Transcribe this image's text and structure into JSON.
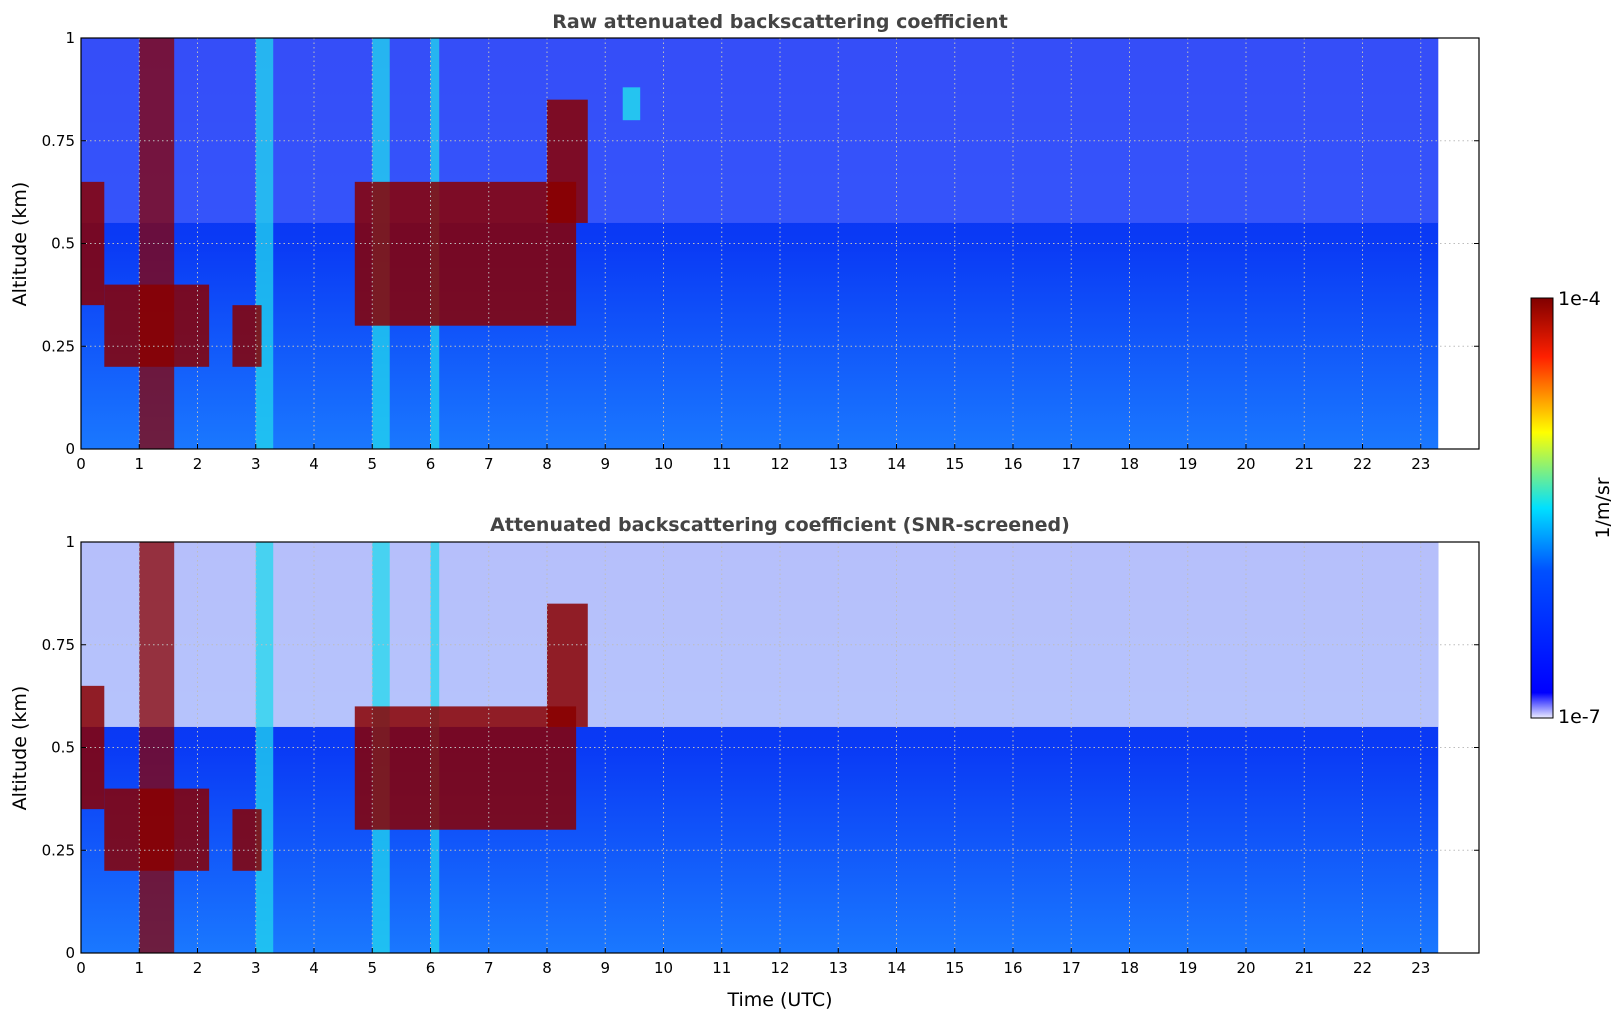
{
  "chart_data": [
    {
      "type": "heatmap",
      "title": "Raw attenuated backscattering coefficient",
      "xlabel": "",
      "ylabel": "Altitude (km)",
      "xlim": [
        0,
        24
      ],
      "ylim": [
        0,
        1
      ],
      "x_ticks": [
        "0",
        "1",
        "2",
        "3",
        "4",
        "5",
        "6",
        "7",
        "8",
        "9",
        "10",
        "11",
        "12",
        "13",
        "14",
        "15",
        "16",
        "17",
        "18",
        "19",
        "20",
        "21",
        "22",
        "23"
      ],
      "y_ticks": [
        "0",
        "0.25",
        "0.5",
        "0.75",
        "1"
      ],
      "grid": true,
      "data_extent_hours": [
        0,
        23.3
      ],
      "features": [
        {
          "t": [
            0,
            0.4
          ],
          "alt": [
            0.35,
            0.65
          ],
          "level": "high"
        },
        {
          "t": [
            0.4,
            2.2
          ],
          "alt": [
            0.2,
            0.4
          ],
          "level": "high"
        },
        {
          "t": [
            2.6,
            3.1
          ],
          "alt": [
            0.2,
            0.35
          ],
          "level": "high"
        },
        {
          "t": [
            4.7,
            8.5
          ],
          "alt": [
            0.3,
            0.65
          ],
          "level": "high"
        },
        {
          "t": [
            8.0,
            8.7
          ],
          "alt": [
            0.55,
            0.85
          ],
          "level": "high"
        },
        {
          "t": [
            9.3,
            9.6
          ],
          "alt": [
            0.8,
            0.88
          ],
          "level": "medium"
        }
      ],
      "columns": [
        {
          "t": [
            1.0,
            1.6
          ],
          "level": "high"
        },
        {
          "t": [
            3.0,
            3.3
          ],
          "level": "medium"
        },
        {
          "t": [
            5.0,
            5.3
          ],
          "level": "medium"
        },
        {
          "t": [
            6.0,
            6.15
          ],
          "level": "medium"
        }
      ]
    },
    {
      "type": "heatmap",
      "title": "Attenuated backscattering coefficient (SNR-screened)",
      "xlabel": "Time (UTC)",
      "ylabel": "Altitude (km)",
      "xlim": [
        0,
        24
      ],
      "ylim": [
        0,
        1
      ],
      "x_ticks": [
        "0",
        "1",
        "2",
        "3",
        "4",
        "5",
        "6",
        "7",
        "8",
        "9",
        "10",
        "11",
        "12",
        "13",
        "14",
        "15",
        "16",
        "17",
        "18",
        "19",
        "20",
        "21",
        "22",
        "23"
      ],
      "y_ticks": [
        "0",
        "0.25",
        "0.5",
        "0.75",
        "1"
      ],
      "grid": true,
      "data_extent_hours": [
        0,
        23.3
      ],
      "features": [
        {
          "t": [
            0,
            0.4
          ],
          "alt": [
            0.35,
            0.65
          ],
          "level": "high"
        },
        {
          "t": [
            0.4,
            2.2
          ],
          "alt": [
            0.2,
            0.4
          ],
          "level": "high"
        },
        {
          "t": [
            2.6,
            3.1
          ],
          "alt": [
            0.2,
            0.35
          ],
          "level": "high"
        },
        {
          "t": [
            4.7,
            8.5
          ],
          "alt": [
            0.3,
            0.6
          ],
          "level": "high"
        },
        {
          "t": [
            8.0,
            8.7
          ],
          "alt": [
            0.55,
            0.85
          ],
          "level": "high"
        }
      ],
      "columns": [
        {
          "t": [
            1.0,
            1.6
          ],
          "level": "high"
        },
        {
          "t": [
            3.0,
            3.3
          ],
          "level": "medium"
        },
        {
          "t": [
            5.0,
            5.3
          ],
          "level": "medium"
        },
        {
          "t": [
            6.0,
            6.15
          ],
          "level": "medium"
        }
      ]
    }
  ],
  "colorbar": {
    "label": "1/m/sr",
    "max_label": "1e-4",
    "min_label": "1e-7",
    "colormap": "jet",
    "colors": [
      "#ececff",
      "#0000ff",
      "#00ffff",
      "#ffff00",
      "#ff0000",
      "#800000"
    ]
  }
}
